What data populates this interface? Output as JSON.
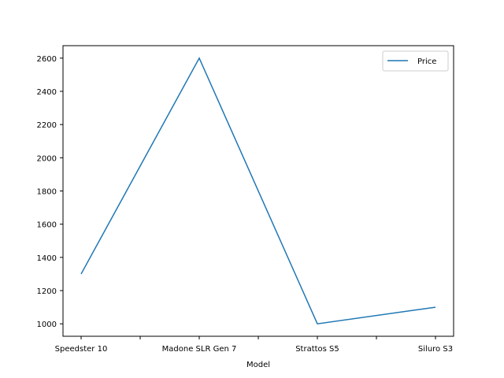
{
  "chart_data": {
    "type": "line",
    "x": [
      "Speedster 10",
      "Madone SLR Gen 7",
      "Strattos S5",
      "Siluro S3"
    ],
    "series": [
      {
        "name": "Price",
        "values": [
          1300,
          2600,
          1000,
          1100
        ],
        "color": "#1f77b4"
      }
    ],
    "xlabel": "Model",
    "ylabel": "",
    "ylim": [
      925,
      2675
    ],
    "yticks": [
      1000,
      1200,
      1400,
      1600,
      1800,
      2000,
      2200,
      2400,
      2600
    ],
    "grid": false,
    "legend_position": "top-right"
  }
}
